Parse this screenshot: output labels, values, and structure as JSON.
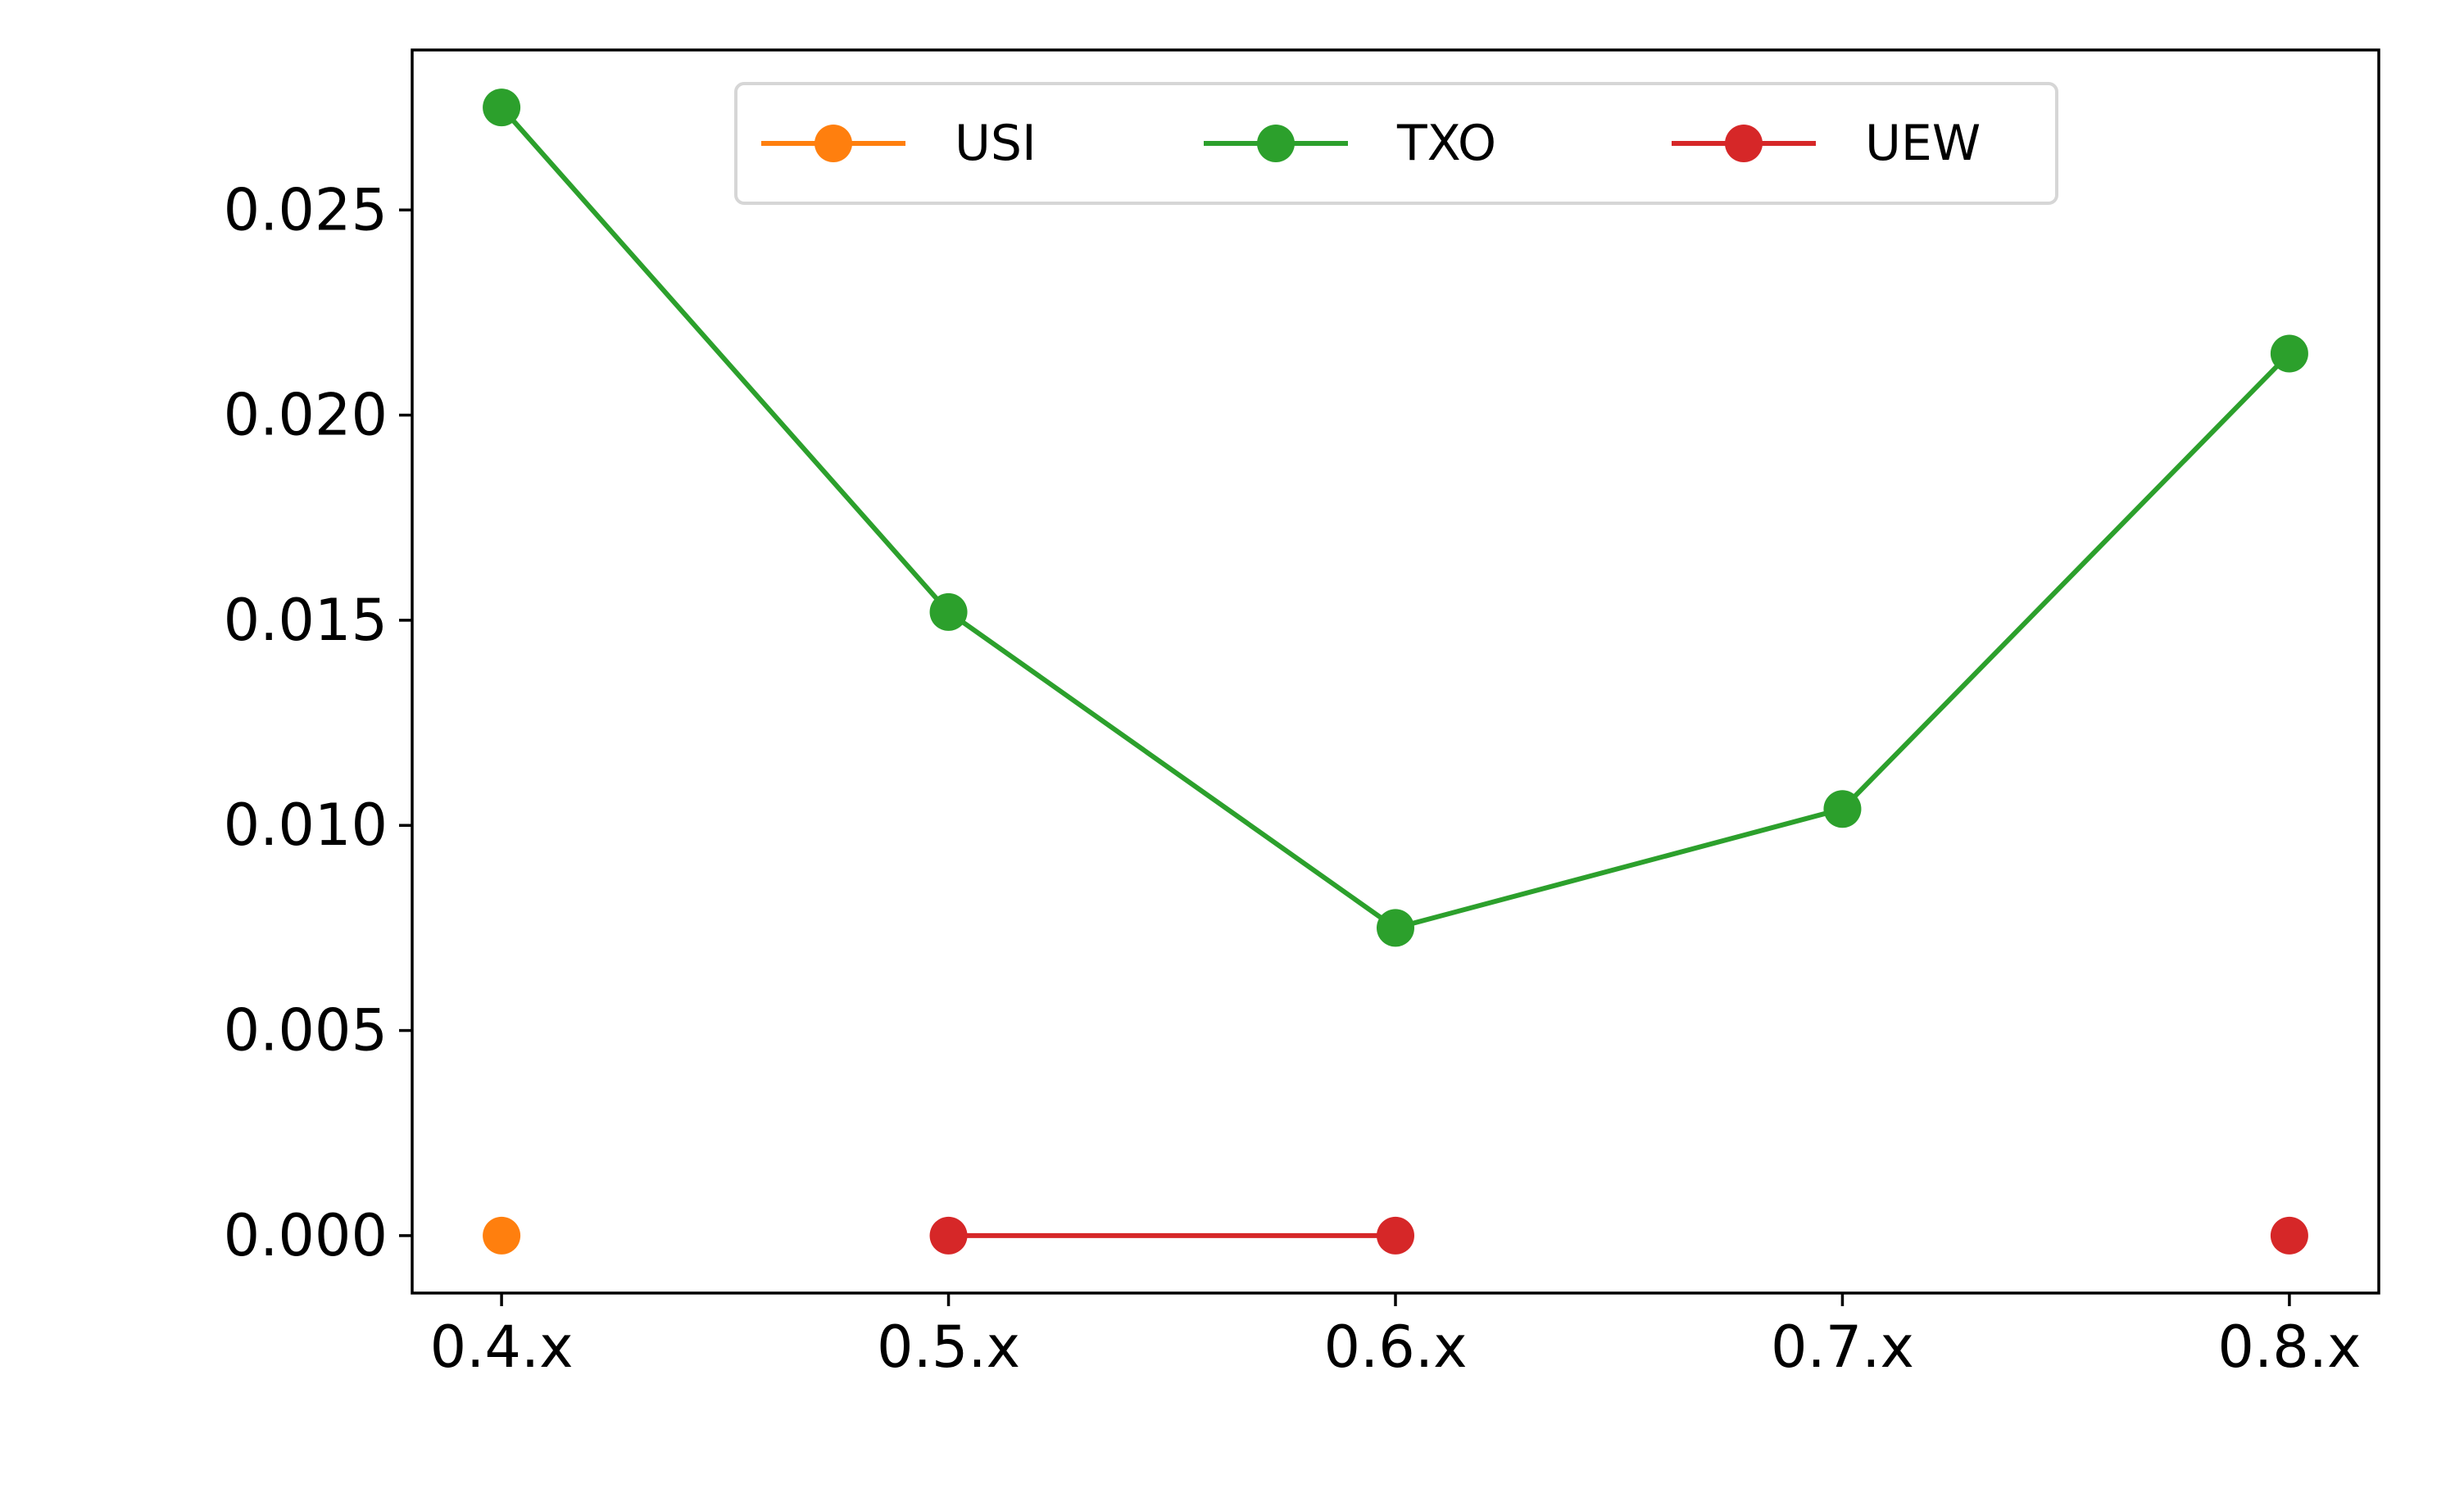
{
  "chart_data": {
    "type": "line",
    "title": "",
    "xlabel": "",
    "ylabel": "",
    "categories": [
      "0.4.x",
      "0.5.x",
      "0.6.x",
      "0.7.x",
      "0.8.x"
    ],
    "ylim": [
      -0.0014,
      0.0289
    ],
    "yticks": [
      "0.000",
      "0.005",
      "0.010",
      "0.015",
      "0.020",
      "0.025"
    ],
    "ytick_values": [
      0.0,
      0.005,
      0.01,
      0.015,
      0.02,
      0.025
    ],
    "grid": false,
    "legend": {
      "placement": "upper-center",
      "columns": 3
    },
    "series": [
      {
        "name": "USI",
        "color": "#ff7f0e",
        "values": [
          0.0,
          null,
          null,
          null,
          null
        ]
      },
      {
        "name": "TXO",
        "color": "#2ca02c",
        "values": [
          0.0275,
          0.0152,
          0.0075,
          0.0104,
          0.0215
        ]
      },
      {
        "name": "UEW",
        "color": "#d62728",
        "values": [
          null,
          0.0,
          0.0,
          null,
          0.0
        ]
      }
    ]
  }
}
